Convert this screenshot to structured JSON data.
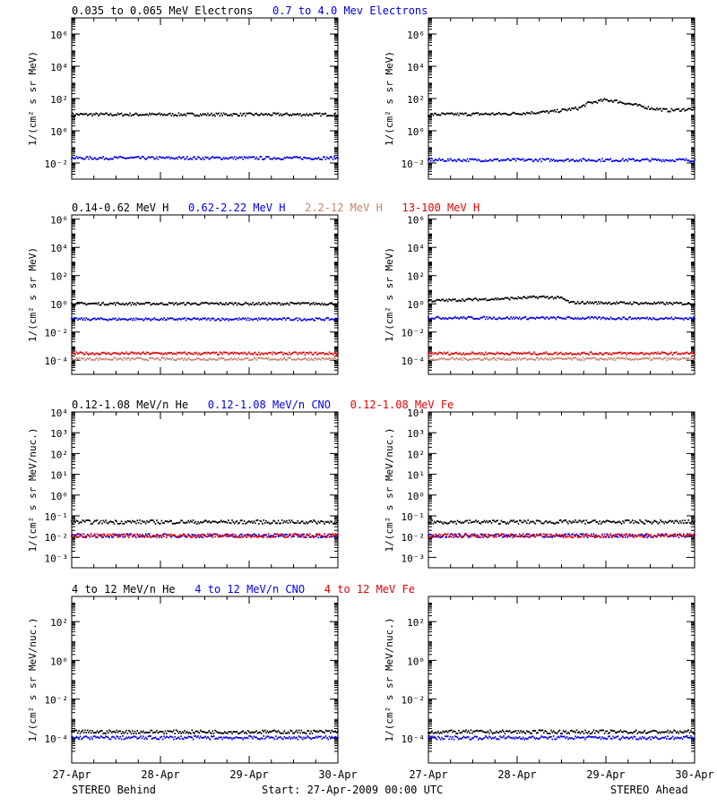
{
  "colors": {
    "black": "#000000",
    "blue": "#0000ee",
    "salmon": "#c8826e",
    "red": "#e60000"
  },
  "footer": {
    "left": "STEREO Behind",
    "center": "Start: 27-Apr-2009 00:00 UTC",
    "right": "STEREO Ahead"
  },
  "x_ticks": [
    "27-Apr",
    "28-Apr",
    "29-Apr",
    "30-Apr"
  ],
  "chart_data": [
    {
      "type": "scatter",
      "log_y": true,
      "ylabel": "1/(cm² s sr MeV)",
      "legend": [
        {
          "text": "0.035 to 0.065 MeV Electrons",
          "color": "#000000"
        },
        {
          "text": "0.7 to 4.0 Mev Electrons",
          "color": "#0000ee"
        }
      ],
      "y_exp_range": [
        -3,
        7
      ],
      "y_ticks_exp": [
        -2,
        0,
        2,
        4,
        6
      ],
      "panels": [
        {
          "name": "STEREO Behind",
          "series": [
            {
              "name": "0.035 to 0.065 MeV Electrons",
              "color": "#000000",
              "level": [
                [
                  0,
                  10
                ],
                [
                  3,
                  10
                ]
              ]
            },
            {
              "name": "0.7 to 4.0 Mev Electrons",
              "color": "#0000ee",
              "level": [
                [
                  0,
                  0.02
                ],
                [
                  3,
                  0.02
                ]
              ]
            }
          ]
        },
        {
          "name": "STEREO Ahead",
          "series": [
            {
              "name": "0.035 to 0.065 MeV Electrons",
              "color": "#000000",
              "level": [
                [
                  0,
                  10
                ],
                [
                  0.9,
                  11
                ],
                [
                  1.4,
                  15
                ],
                [
                  1.7,
                  25
                ],
                [
                  1.8,
                  50
                ],
                [
                  2.0,
                  80
                ],
                [
                  2.1,
                  70
                ],
                [
                  2.5,
                  25
                ],
                [
                  2.7,
                  18
                ],
                [
                  3,
                  22
                ]
              ]
            },
            {
              "name": "0.7 to 4.0 Mev Electrons",
              "color": "#0000ee",
              "level": [
                [
                  0,
                  0.015
                ],
                [
                  3,
                  0.015
                ]
              ]
            }
          ]
        }
      ]
    },
    {
      "type": "scatter",
      "log_y": true,
      "ylabel": "1/(cm² s sr MeV)",
      "legend": [
        {
          "text": "0.14-0.62 MeV H",
          "color": "#000000"
        },
        {
          "text": "0.62-2.22 MeV H",
          "color": "#0000ee"
        },
        {
          "text": "2.2-12 MeV H",
          "color": "#c8826e"
        },
        {
          "text": "13-100 MeV H",
          "color": "#e60000"
        }
      ],
      "y_exp_range": [
        -5,
        6.3
      ],
      "y_ticks_exp": [
        -4,
        -2,
        0,
        2,
        4,
        6
      ],
      "panels": [
        {
          "name": "STEREO Behind",
          "series": [
            {
              "name": "0.14-0.62 MeV H",
              "color": "#000000",
              "level": [
                [
                  0,
                  1
                ],
                [
                  3,
                  1
                ]
              ]
            },
            {
              "name": "0.62-2.22 MeV H",
              "color": "#0000ee",
              "level": [
                [
                  0,
                  0.08
                ],
                [
                  3,
                  0.08
                ]
              ]
            },
            {
              "name": "2.2-12 MeV H",
              "color": "#c8826e",
              "level": [
                [
                  0,
                  0.00012
                ],
                [
                  3,
                  0.00012
                ]
              ]
            },
            {
              "name": "13-100 MeV H",
              "color": "#e60000",
              "level": [
                [
                  0,
                  0.0003
                ],
                [
                  3,
                  0.0003
                ]
              ]
            }
          ]
        },
        {
          "name": "STEREO Ahead",
          "series": [
            {
              "name": "0.14-0.62 MeV H",
              "color": "#000000",
              "level": [
                [
                  0,
                  1.6
                ],
                [
                  0.8,
                  2.2
                ],
                [
                  1.3,
                  3
                ],
                [
                  1.5,
                  2.5
                ],
                [
                  1.6,
                  1.2
                ],
                [
                  3,
                  1
                ]
              ]
            },
            {
              "name": "0.62-2.22 MeV H",
              "color": "#0000ee",
              "level": [
                [
                  0,
                  0.1
                ],
                [
                  3,
                  0.09
                ]
              ]
            },
            {
              "name": "2.2-12 MeV H",
              "color": "#c8826e",
              "level": [
                [
                  0,
                  0.00012
                ],
                [
                  3,
                  0.00012
                ]
              ]
            },
            {
              "name": "13-100 MeV H",
              "color": "#e60000",
              "level": [
                [
                  0,
                  0.0003
                ],
                [
                  3,
                  0.0003
                ]
              ]
            }
          ]
        }
      ]
    },
    {
      "type": "scatter",
      "log_y": true,
      "ylabel": "1/(cm² s sr MeV/nuc.)",
      "legend": [
        {
          "text": "0.12-1.08 MeV/n He",
          "color": "#000000"
        },
        {
          "text": "0.12-1.08 MeV/n CNO",
          "color": "#0000ee"
        },
        {
          "text": "0.12-1.08 MeV Fe",
          "color": "#e60000"
        }
      ],
      "y_exp_range": [
        -3.5,
        4
      ],
      "y_ticks_exp": [
        -3,
        -2,
        -1,
        0,
        1,
        2,
        3,
        4
      ],
      "panels": [
        {
          "name": "STEREO Behind",
          "series": [
            {
              "name": "0.12-1.08 MeV/n He",
              "color": "#000000",
              "level": [
                [
                  0,
                  0.05
                ],
                [
                  3,
                  0.05
                ]
              ]
            },
            {
              "name": "0.12-1.08 MeV/n CNO",
              "color": "#0000ee",
              "level": [
                [
                  0,
                  0.011
                ],
                [
                  3,
                  0.011
                ]
              ]
            },
            {
              "name": "0.12-1.08 MeV Fe",
              "color": "#e60000",
              "level": [
                [
                  0,
                  0.011
                ],
                [
                  3,
                  0.011
                ]
              ]
            }
          ]
        },
        {
          "name": "STEREO Ahead",
          "series": [
            {
              "name": "0.12-1.08 MeV/n He",
              "color": "#000000",
              "level": [
                [
                  0,
                  0.05
                ],
                [
                  3,
                  0.05
                ]
              ]
            },
            {
              "name": "0.12-1.08 MeV/n CNO",
              "color": "#0000ee",
              "level": [
                [
                  0,
                  0.011
                ],
                [
                  3,
                  0.011
                ]
              ]
            },
            {
              "name": "0.12-1.08 MeV Fe",
              "color": "#e60000",
              "level": [
                [
                  0,
                  0.011
                ],
                [
                  3,
                  0.011
                ]
              ]
            }
          ]
        }
      ]
    },
    {
      "type": "scatter",
      "log_y": true,
      "ylabel": "1/(cm² s sr MeV/nuc.)",
      "legend": [
        {
          "text": "4 to 12 MeV/n He",
          "color": "#000000"
        },
        {
          "text": "4 to 12 MeV/n CNO",
          "color": "#0000ee"
        },
        {
          "text": "4 to 12 MeV Fe",
          "color": "#e60000"
        }
      ],
      "y_exp_range": [
        -5.3,
        3.3
      ],
      "y_ticks_exp": [
        -4,
        -2,
        0,
        2
      ],
      "panels": [
        {
          "name": "STEREO Behind",
          "series": [
            {
              "name": "4 to 12 MeV/n He",
              "color": "#000000",
              "level": [
                [
                  0,
                  0.0002
                ],
                [
                  3,
                  0.0002
                ]
              ]
            },
            {
              "name": "4 to 12 MeV/n CNO",
              "color": "#0000ee",
              "level": [
                [
                  0,
                  0.0001
                ],
                [
                  3,
                  0.0001
                ]
              ]
            }
          ]
        },
        {
          "name": "STEREO Ahead",
          "series": [
            {
              "name": "4 to 12 MeV/n He",
              "color": "#000000",
              "level": [
                [
                  0,
                  0.0002
                ],
                [
                  3,
                  0.0002
                ]
              ]
            },
            {
              "name": "4 to 12 MeV/n CNO",
              "color": "#0000ee",
              "level": [
                [
                  0,
                  0.0001
                ],
                [
                  3,
                  0.0001
                ]
              ]
            }
          ]
        }
      ]
    }
  ]
}
